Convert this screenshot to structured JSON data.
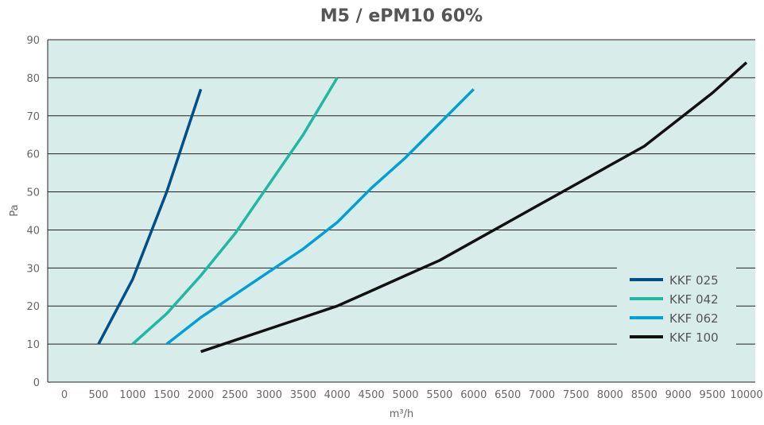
{
  "chart_data": {
    "type": "line",
    "title": "M5 / ePM10 60%",
    "xlabel": "m³/h",
    "ylabel": "Pa",
    "xlim": [
      0,
      10000
    ],
    "ylim": [
      0,
      90
    ],
    "xticks": [
      0,
      500,
      1000,
      1500,
      2000,
      2500,
      3000,
      3500,
      4000,
      4500,
      5000,
      5500,
      6000,
      6500,
      7000,
      7500,
      8000,
      8500,
      9000,
      9500,
      10000
    ],
    "yticks": [
      0,
      10,
      20,
      30,
      40,
      50,
      60,
      70,
      80,
      90
    ],
    "grid": "horizontal",
    "background": "#d8ede9",
    "legend_position": "bottom-right",
    "series": [
      {
        "name": "KKF 025",
        "color": "#004f8a",
        "x": [
          500,
          1000,
          1500,
          2000
        ],
        "y": [
          10,
          27,
          50,
          77
        ]
      },
      {
        "name": "KKF 042",
        "color": "#20b8a0",
        "x": [
          1000,
          1500,
          2000,
          2500,
          3000,
          3500,
          4000
        ],
        "y": [
          10,
          18,
          28,
          39,
          52,
          65,
          80
        ]
      },
      {
        "name": "KKF 062",
        "color": "#009fd8",
        "x": [
          1500,
          2000,
          2500,
          3000,
          3500,
          4000,
          4500,
          5000,
          5500,
          6000
        ],
        "y": [
          10,
          17,
          23,
          29,
          35,
          42,
          51,
          59,
          68,
          77
        ]
      },
      {
        "name": "KKF 100",
        "color": "#111111",
        "x": [
          2000,
          2500,
          3000,
          3500,
          4000,
          4500,
          5000,
          5500,
          6000,
          6500,
          7000,
          7500,
          8000,
          8500,
          9000,
          9500,
          10000
        ],
        "y": [
          8,
          11,
          14,
          17,
          20,
          24,
          28,
          32,
          37,
          42,
          47,
          52,
          57,
          62,
          69,
          76,
          84
        ]
      }
    ]
  }
}
